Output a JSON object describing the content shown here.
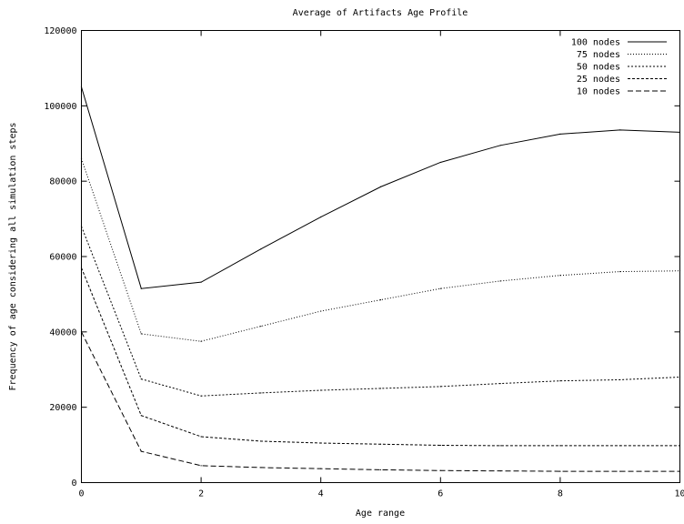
{
  "chart_data": {
    "type": "line",
    "title": "Average of Artifacts Age Profile",
    "xlabel": "Age range",
    "ylabel": "Frequency of age considering all simulation steps",
    "xlim": [
      0,
      10
    ],
    "ylim": [
      0,
      120000
    ],
    "x_ticks": [
      "0",
      "2",
      "4",
      "6",
      "8",
      "10"
    ],
    "y_ticks": [
      "0",
      "20000",
      "40000",
      "60000",
      "80000",
      "100000",
      "120000"
    ],
    "grid": false,
    "legend_position": "top-right",
    "x": [
      0,
      1,
      2,
      3,
      4,
      5,
      6,
      7,
      8,
      9,
      10
    ],
    "series": [
      {
        "name": "100 nodes",
        "dash": "solid",
        "values": [
          105000,
          51500,
          53200,
          62000,
          70500,
          78500,
          85000,
          89500,
          92500,
          93600,
          93000
        ]
      },
      {
        "name": "75 nodes",
        "dash": "dotted",
        "values": [
          86000,
          39500,
          37500,
          41500,
          45500,
          48500,
          51500,
          53500,
          55000,
          56000,
          56200
        ]
      },
      {
        "name": "50 nodes",
        "dash": "dense-dashed",
        "values": [
          68000,
          27500,
          23000,
          23800,
          24500,
          25000,
          25500,
          26300,
          27000,
          27300,
          28000
        ]
      },
      {
        "name": "25 nodes",
        "dash": "short-dashed",
        "values": [
          57000,
          17800,
          12200,
          11000,
          10500,
          10200,
          9900,
          9800,
          9800,
          9800,
          9800
        ]
      },
      {
        "name": "10 nodes",
        "dash": "long-dashed",
        "values": [
          40000,
          8300,
          4500,
          4000,
          3700,
          3400,
          3200,
          3100,
          3000,
          3000,
          3000
        ]
      }
    ]
  }
}
